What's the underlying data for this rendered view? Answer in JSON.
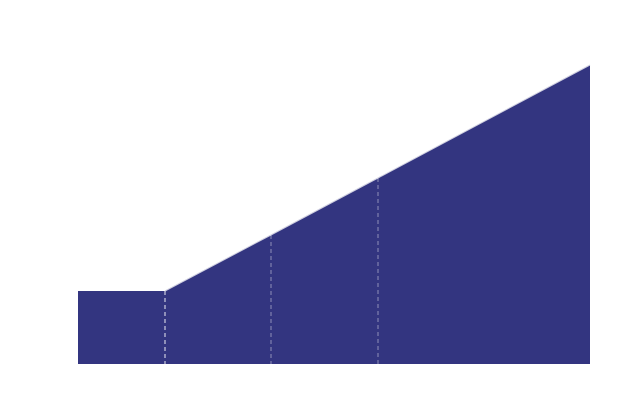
{
  "chart_data": {
    "type": "area",
    "x": [
      0,
      87,
      193,
      300,
      512
    ],
    "values": [
      73,
      73,
      129,
      186,
      299
    ],
    "xlim": [
      0,
      512
    ],
    "ylim": [
      0,
      300
    ],
    "color": "#333580",
    "edge_color": "#d0d0e0",
    "divider_color": "#ffffff"
  }
}
